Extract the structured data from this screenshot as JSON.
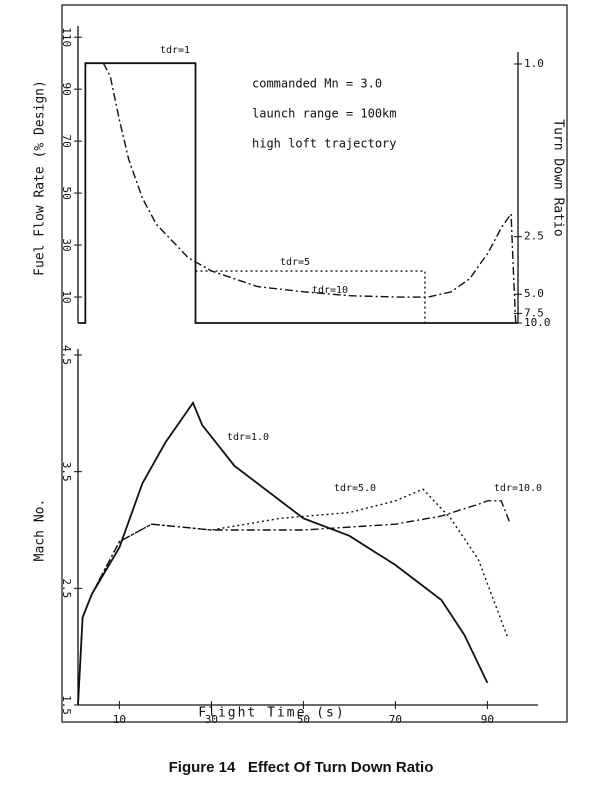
{
  "figure": {
    "caption": "Figure 14   Effect Of Turn Down Ratio"
  },
  "chart_data": [
    {
      "type": "line",
      "ylabel": "Fuel Flow Rate (% Design)",
      "y2label": "Turn Down Ratio",
      "annotations": [
        "commanded Mn = 3.0",
        "launch range = 100km",
        "high loft trajectory"
      ],
      "xlim": [
        1,
        96.5
      ],
      "ylim": [
        0,
        112
      ],
      "yticks": [
        10,
        30,
        50,
        70,
        90,
        110
      ],
      "y2lim": [
        0.9,
        10
      ],
      "y2scale": "reciprocal",
      "y2ticks": [
        {
          "value": 1,
          "label": "1.0"
        },
        2.5,
        {
          "value": 5,
          "label": "5.0"
        },
        7.5,
        {
          "value": 10,
          "label": "10.0"
        }
      ],
      "series": [
        {
          "name": "tdr=1",
          "color": "#111111",
          "dash": "solid",
          "x": [
            1,
            2.6,
            2.6,
            26.5,
            26.5,
            96.5
          ],
          "values": [
            0,
            0,
            100,
            100,
            0,
            0
          ]
        },
        {
          "name": "tdr=5",
          "color": "#111111",
          "dash": "dotted",
          "x": [
            26.5,
            76.3,
            76.3
          ],
          "values": [
            20,
            20,
            0
          ]
        },
        {
          "name": "tdr=10",
          "color": "#111111",
          "dash": "dashdot",
          "x": [
            3,
            6.5,
            8,
            10,
            12,
            15,
            18,
            25,
            30,
            40,
            50,
            60,
            70,
            77,
            82,
            86,
            90,
            93,
            95,
            95.5,
            96
          ],
          "values": [
            100,
            100,
            95,
            78,
            63,
            48,
            38,
            25,
            20,
            14,
            12,
            10.5,
            10,
            10,
            12,
            17,
            27,
            37,
            42,
            20,
            0
          ]
        }
      ]
    },
    {
      "type": "line",
      "xlabel": "Flight Time (s)",
      "ylabel": "Mach No.",
      "xlim": [
        1,
        101
      ],
      "xticks": [
        10,
        30,
        50,
        70,
        90
      ],
      "ylim": [
        1.5,
        4.5
      ],
      "yticks": [
        1.5,
        2.5,
        3.5,
        4.5
      ],
      "series": [
        {
          "name": "tdr=1.0",
          "color": "#111111",
          "dash": "solid",
          "x": [
            1,
            2,
            4,
            10,
            15,
            20,
            26,
            28,
            35,
            50,
            60,
            70,
            80,
            85,
            90
          ],
          "values": [
            1.5,
            2.25,
            2.45,
            2.85,
            3.4,
            3.75,
            4.09,
            3.9,
            3.55,
            3.1,
            2.95,
            2.7,
            2.4,
            2.1,
            1.69
          ]
        },
        {
          "name": "tdr=5.0",
          "color": "#111111",
          "dash": "dotted",
          "x": [
            1,
            2,
            4,
            10,
            17,
            30,
            45,
            60,
            70,
            76,
            82,
            88,
            94.5
          ],
          "values": [
            1.5,
            2.25,
            2.45,
            2.9,
            3.05,
            3.0,
            3.1,
            3.15,
            3.25,
            3.35,
            3.1,
            2.75,
            2.07
          ]
        },
        {
          "name": "tdr=10.0",
          "color": "#111111",
          "dash": "dashdot",
          "x": [
            1,
            2,
            4,
            10,
            17,
            30,
            50,
            70,
            80,
            88,
            90,
            93,
            95
          ],
          "values": [
            1.5,
            2.25,
            2.45,
            2.9,
            3.05,
            3.0,
            3.0,
            3.05,
            3.12,
            3.22,
            3.25,
            3.25,
            3.05
          ]
        }
      ]
    }
  ]
}
